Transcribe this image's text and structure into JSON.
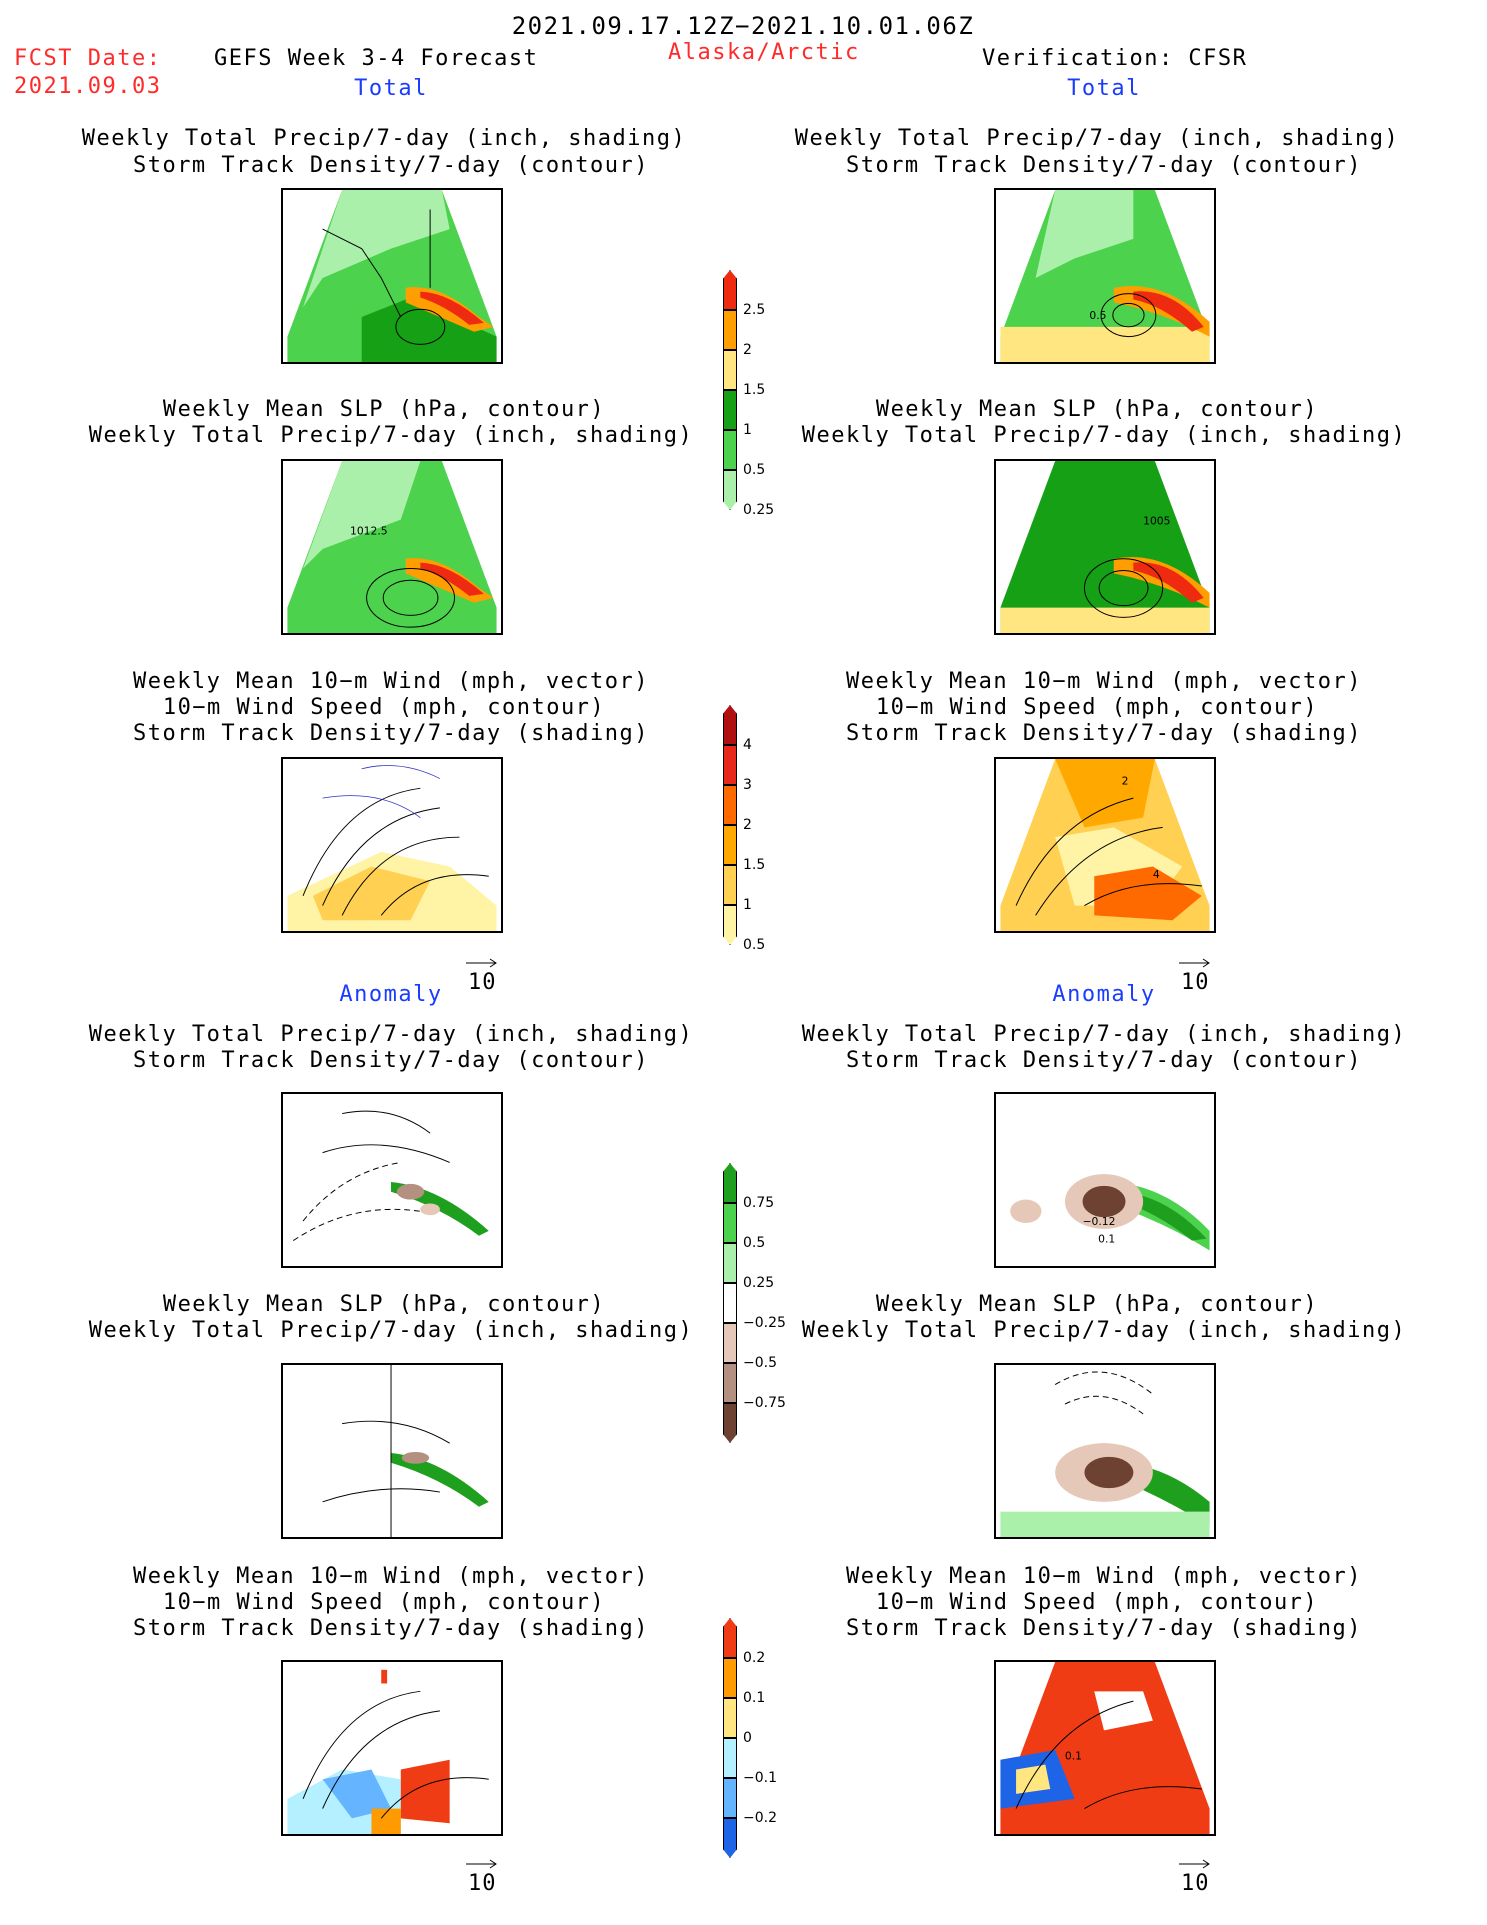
{
  "header": {
    "date_range": "2021.09.17.12Z−2021.10.01.06Z",
    "fcst_label": "FCST Date:",
    "fcst_date": "2021.09.03",
    "model": "GEFS Week 3-4 Forecast",
    "region": "Alaska/Arctic",
    "verification": "Verification: CFSR"
  },
  "sections": {
    "total": "Total",
    "anomaly": "Anomaly"
  },
  "panel_titles": {
    "p1": [
      "Weekly Total Precip/7-day (inch, shading)",
      "Storm Track Density/7-day (contour)"
    ],
    "p2": [
      "Weekly Mean SLP (hPa, contour)",
      "Weekly Total Precip/7-day (inch, shading)"
    ],
    "p3": [
      "Weekly Mean 10−m Wind (mph, vector)",
      "10−m Wind Speed (mph, contour)",
      "Storm Track Density/7-day (shading)"
    ]
  },
  "contour_labels": {
    "fcst_slp": "1012.5",
    "verif_slp": "1005",
    "verif_std": "0.5",
    "verif_wind": "2",
    "verif_wind2": "4",
    "verif_anom1": "−0.12",
    "verif_anom2": "0.1",
    "verif_anom3": "0.1"
  },
  "vector_ref": "10",
  "colorbars": [
    {
      "id": "precip_total",
      "labels": [
        "2.5",
        "2",
        "1.5",
        "1",
        "0.5",
        "0.25"
      ],
      "colors": [
        "#ee2a10",
        "#ff9e00",
        "#ffe680",
        "#16a016",
        "#4cd24c",
        "#aaf0aa"
      ]
    },
    {
      "id": "storm_total",
      "labels": [
        "4",
        "3",
        "2",
        "1.5",
        "1",
        "0.5"
      ],
      "colors": [
        "#b01010",
        "#e8281a",
        "#ff6a00",
        "#ffa800",
        "#ffd052",
        "#fff4a6"
      ]
    },
    {
      "id": "precip_anom",
      "labels": [
        "0.75",
        "0.5",
        "0.25",
        "−0.25",
        "−0.5",
        "−0.75"
      ],
      "colors": [
        "#1ea01e",
        "#4cd24c",
        "#aaf0aa",
        "#ffffff",
        "#e6c8b8",
        "#b49080",
        "#6e4232"
      ]
    },
    {
      "id": "storm_anom",
      "labels": [
        "0.2",
        "0.1",
        "0",
        "−0.1",
        "−0.2"
      ],
      "colors": [
        "#f03c14",
        "#ff9a00",
        "#ffe680",
        "#b4f0ff",
        "#64b4ff",
        "#1e64e6"
      ]
    }
  ],
  "colors": {
    "label_red": "#ff2a2a",
    "label_blue": "#1a3cff"
  }
}
